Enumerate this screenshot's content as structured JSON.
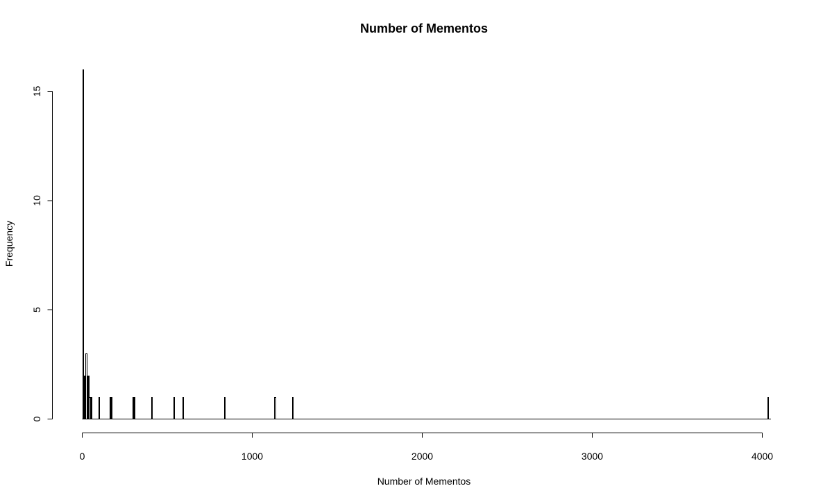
{
  "chart_data": {
    "type": "bar",
    "title": "Number of Mementos",
    "xlabel": "Number of Mementos",
    "ylabel": "Frequency",
    "xlim": [
      0,
      4050
    ],
    "ylim": [
      0,
      16
    ],
    "xticks": [
      0,
      1000,
      2000,
      3000,
      4000
    ],
    "yticks": [
      0,
      5,
      10,
      15
    ],
    "grid": false,
    "legend": "none",
    "bin_width": 5,
    "bars": [
      {
        "x": 0,
        "count": 16
      },
      {
        "x": 5,
        "count": 2
      },
      {
        "x": 10,
        "count": 1
      },
      {
        "x": 15,
        "count": 2
      },
      {
        "x": 20,
        "count": 3
      },
      {
        "x": 25,
        "count": 2
      },
      {
        "x": 30,
        "count": 1
      },
      {
        "x": 35,
        "count": 2
      },
      {
        "x": 40,
        "count": 1
      },
      {
        "x": 45,
        "count": 1
      },
      {
        "x": 50,
        "count": 1
      },
      {
        "x": 95,
        "count": 1
      },
      {
        "x": 160,
        "count": 1
      },
      {
        "x": 170,
        "count": 1
      },
      {
        "x": 295,
        "count": 1
      },
      {
        "x": 305,
        "count": 1
      },
      {
        "x": 405,
        "count": 1
      },
      {
        "x": 535,
        "count": 1
      },
      {
        "x": 590,
        "count": 1
      },
      {
        "x": 835,
        "count": 1
      },
      {
        "x": 1130,
        "count": 1
      },
      {
        "x": 1235,
        "count": 1
      },
      {
        "x": 4030,
        "count": 1
      }
    ]
  }
}
